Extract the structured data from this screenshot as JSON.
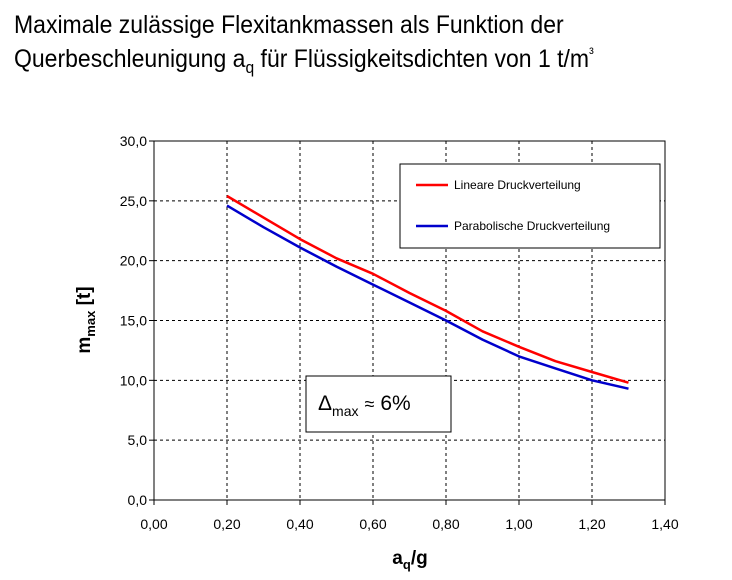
{
  "title": {
    "line1": "Maximale zulässige Flexitankmassen als Funktion der",
    "line2_before": "Querbeschleunigung a",
    "line2_sub": "q",
    "line2_after": " für Flüssigkeitsdichten von 1 t/m",
    "line2_sup": "³"
  },
  "annotation": {
    "delta": "Δ",
    "sub": "max",
    "approx": "≈",
    "value": "6%"
  },
  "chart_data": {
    "type": "line",
    "xlabel": {
      "main": "a",
      "sub": "q",
      "rest": "/g"
    },
    "ylabel": {
      "main": "m",
      "sub": "max",
      "rest": " [t]"
    },
    "xlim": [
      0,
      1.4
    ],
    "ylim": [
      0,
      30
    ],
    "xticks": [
      0,
      0.2,
      0.4,
      0.6,
      0.8,
      1.0,
      1.2,
      1.4
    ],
    "yticks": [
      0,
      5,
      10,
      15,
      20,
      25,
      30
    ],
    "xtick_labels": [
      "0,00",
      "0,20",
      "0,40",
      "0,60",
      "0,80",
      "1,00",
      "1,20",
      "1,40"
    ],
    "ytick_labels": [
      "0,0",
      "5,0",
      "10,0",
      "15,0",
      "20,0",
      "25,0",
      "30,0"
    ],
    "grid": "dashed",
    "legend_position": "top-right",
    "series": [
      {
        "name": "Lineare Druckverteilung",
        "color": "#ff0000",
        "x": [
          0.2,
          0.3,
          0.4,
          0.5,
          0.6,
          0.7,
          0.8,
          0.9,
          1.0,
          1.1,
          1.2,
          1.3
        ],
        "y": [
          25.4,
          23.6,
          21.8,
          20.2,
          18.9,
          17.3,
          15.8,
          14.1,
          12.8,
          11.6,
          10.7,
          9.8
        ]
      },
      {
        "name": "Parabolische Druckverteilung",
        "color": "#0000cc",
        "x": [
          0.2,
          0.3,
          0.4,
          0.5,
          0.6,
          0.7,
          0.8,
          0.9,
          1.0,
          1.1,
          1.2,
          1.3
        ],
        "y": [
          24.6,
          22.8,
          21.1,
          19.5,
          18.0,
          16.5,
          15.0,
          13.4,
          12.0,
          11.0,
          10.0,
          9.3
        ]
      }
    ]
  }
}
